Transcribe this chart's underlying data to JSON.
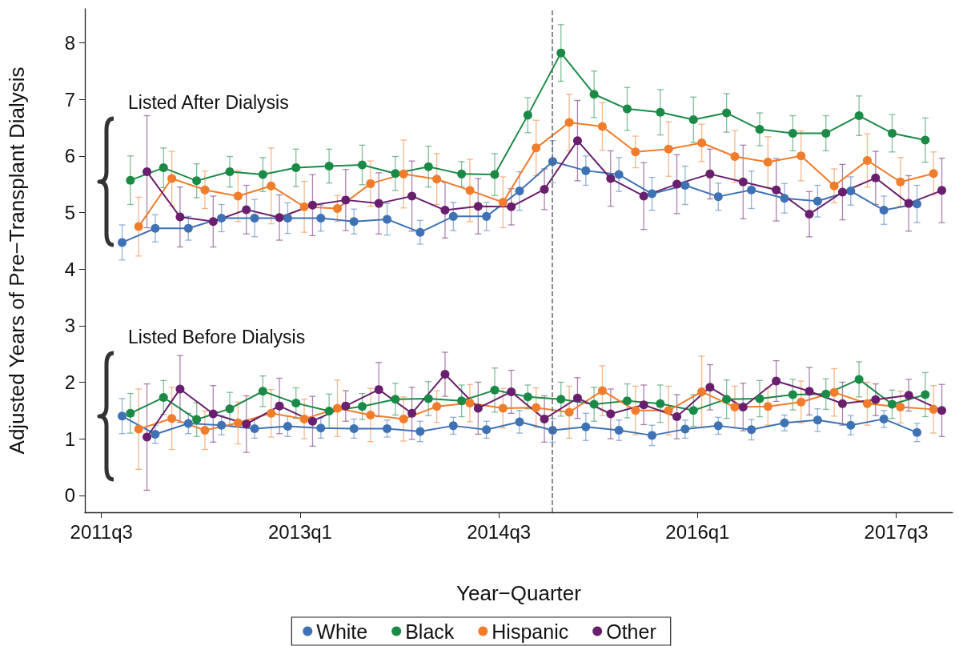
{
  "chart_data": {
    "type": "line",
    "xlabel": "Year−Quarter",
    "ylabel": "Adjusted Years of Pre−Transplant Dialysis",
    "categories": [
      "2011q3",
      null,
      null,
      null,
      null,
      null,
      "2013q1",
      null,
      null,
      null,
      null,
      null,
      "2014q3",
      null,
      null,
      null,
      null,
      null,
      "2016q1",
      null,
      null,
      null,
      null,
      null,
      "2017q3",
      null
    ],
    "ylim": [
      -0.3,
      8.6
    ],
    "yticks": [
      0,
      1,
      2,
      3,
      4,
      5,
      6,
      7,
      8
    ],
    "grid": false,
    "legend": "bottom",
    "marker": "circle",
    "line_style": "solid",
    "annotations": [
      "Listed After Dialysis",
      "Listed Before Dialysis"
    ],
    "series": [
      {
        "name": "White",
        "color": "#3f72b5",
        "values": [
          null,
          4.47,
          4.72,
          4.72,
          4.9,
          4.9,
          4.9,
          4.9,
          4.84,
          4.88,
          4.65,
          4.93,
          4.93,
          5.38,
          5.9,
          5.74,
          5.67,
          5.33,
          5.48,
          5.28,
          5.4,
          5.25,
          5.2,
          5.38,
          5.04,
          5.15
        ],
        "errors": [
          null,
          0.31,
          0.24,
          0.21,
          0.24,
          0.33,
          0.27,
          0.23,
          0.22,
          0.28,
          0.21,
          0.25,
          0.25,
          0.34,
          0.37,
          0.26,
          0.3,
          0.29,
          0.34,
          0.24,
          0.33,
          0.26,
          0.28,
          0.25,
          0.25,
          0.33
        ]
      },
      {
        "name": "Black",
        "color": "#1b8a46",
        "values": [
          null,
          5.57,
          5.79,
          5.56,
          5.72,
          5.67,
          5.79,
          5.82,
          5.84,
          5.69,
          5.81,
          5.68,
          5.67,
          6.72,
          7.82,
          7.09,
          6.83,
          6.77,
          6.64,
          6.76,
          6.47,
          6.4,
          6.4,
          6.71,
          6.4,
          6.28
        ],
        "errors": [
          null,
          0.43,
          0.35,
          0.3,
          0.27,
          0.3,
          0.33,
          0.3,
          0.35,
          0.3,
          0.36,
          0.22,
          0.37,
          0.31,
          0.5,
          0.41,
          0.38,
          0.4,
          0.4,
          0.34,
          0.29,
          0.31,
          0.31,
          0.35,
          0.33,
          0.39
        ]
      },
      {
        "name": "Hispanic",
        "color": "#f07d2b",
        "values": [
          null,
          4.75,
          5.6,
          5.4,
          5.29,
          5.47,
          5.1,
          5.07,
          5.51,
          5.68,
          5.59,
          5.39,
          5.18,
          6.14,
          6.59,
          6.52,
          6.07,
          6.12,
          6.23,
          5.99,
          5.89,
          6.0,
          5.47,
          5.92,
          5.54,
          5.69
        ],
        "errors": [
          null,
          0.52,
          0.48,
          0.33,
          0.45,
          0.67,
          0.45,
          0.23,
          0.4,
          0.6,
          0.45,
          0.55,
          0.45,
          0.49,
          0.5,
          0.42,
          0.28,
          0.48,
          0.33,
          0.46,
          0.45,
          0.44,
          0.3,
          0.47,
          0.43,
          0.38
        ]
      },
      {
        "name": "Other",
        "color": "#6a1f6e",
        "values": [
          null,
          5.72,
          4.92,
          4.84,
          5.05,
          4.91,
          5.13,
          5.22,
          5.16,
          5.29,
          5.04,
          5.11,
          5.1,
          5.41,
          6.27,
          5.6,
          5.29,
          5.5,
          5.68,
          5.54,
          5.4,
          4.97,
          5.36,
          5.61,
          5.16,
          5.39
        ],
        "errors": [
          null,
          0.99,
          0.53,
          0.45,
          0.43,
          0.4,
          0.54,
          0.54,
          0.54,
          0.62,
          0.49,
          0.49,
          0.32,
          0.36,
          0.71,
          0.49,
          0.59,
          0.52,
          0.44,
          0.65,
          0.55,
          0.4,
          0.49,
          0.47,
          0.49,
          0.57
        ]
      },
      {
        "color": "#3f72b5",
        "values": [
          null,
          1.4,
          1.08,
          1.27,
          1.24,
          1.18,
          1.22,
          1.19,
          1.18,
          1.18,
          1.13,
          1.23,
          1.16,
          1.3,
          1.15,
          1.21,
          1.15,
          1.06,
          1.17,
          1.23,
          1.16,
          1.28,
          1.33,
          1.24,
          1.35,
          1.11
        ],
        "errors": [
          null,
          0.31,
          0.16,
          0.18,
          0.17,
          0.17,
          0.18,
          0.18,
          0.17,
          0.15,
          0.18,
          0.15,
          0.15,
          0.2,
          0.21,
          0.24,
          0.18,
          0.18,
          0.16,
          0.15,
          0.18,
          0.14,
          0.2,
          0.17,
          0.15,
          0.16
        ]
      },
      {
        "color": "#1b8a46",
        "values": [
          null,
          1.45,
          1.73,
          1.34,
          1.53,
          1.84,
          1.63,
          1.49,
          1.57,
          1.7,
          1.71,
          1.67,
          1.86,
          1.74,
          1.7,
          1.61,
          1.67,
          1.62,
          1.5,
          1.7,
          1.71,
          1.78,
          1.79,
          2.05,
          1.61,
          1.78
        ],
        "errors": [
          null,
          0.35,
          0.3,
          0.3,
          0.29,
          0.27,
          0.27,
          0.3,
          0.23,
          0.28,
          0.3,
          0.28,
          0.39,
          0.21,
          0.3,
          0.3,
          0.3,
          0.33,
          0.28,
          0.34,
          0.32,
          0.27,
          0.27,
          0.31,
          0.25,
          0.39
        ]
      },
      {
        "color": "#f07d2b",
        "values": [
          null,
          1.17,
          1.36,
          1.15,
          1.28,
          1.45,
          1.35,
          1.54,
          1.42,
          1.35,
          1.57,
          1.63,
          1.54,
          1.55,
          1.47,
          1.85,
          1.5,
          1.5,
          1.83,
          1.56,
          1.57,
          1.65,
          1.82,
          1.62,
          1.56,
          1.52
        ],
        "errors": [
          null,
          0.71,
          0.55,
          0.34,
          0.37,
          0.42,
          0.35,
          0.5,
          0.47,
          0.39,
          0.28,
          0.33,
          0.35,
          0.35,
          0.46,
          0.44,
          0.43,
          0.43,
          0.63,
          0.37,
          0.33,
          0.37,
          0.42,
          0.38,
          0.28,
          0.42
        ]
      },
      {
        "color": "#6a1f6e",
        "values": [
          null,
          1.03,
          1.88,
          1.44,
          1.26,
          1.58,
          1.31,
          1.58,
          1.87,
          1.45,
          2.14,
          1.54,
          1.83,
          1.35,
          1.72,
          1.44,
          1.6,
          1.39,
          1.91,
          1.56,
          2.02,
          1.84,
          1.62,
          1.69,
          1.77,
          1.5
        ],
        "errors": [
          null,
          0.94,
          0.59,
          0.5,
          0.5,
          0.49,
          0.44,
          0.27,
          0.48,
          0.46,
          0.39,
          0.46,
          0.38,
          0.41,
          0.36,
          0.44,
          0.35,
          0.39,
          0.4,
          0.42,
          0.36,
          0.42,
          0.38,
          0.28,
          0.28,
          0.46
        ]
      }
    ]
  }
}
